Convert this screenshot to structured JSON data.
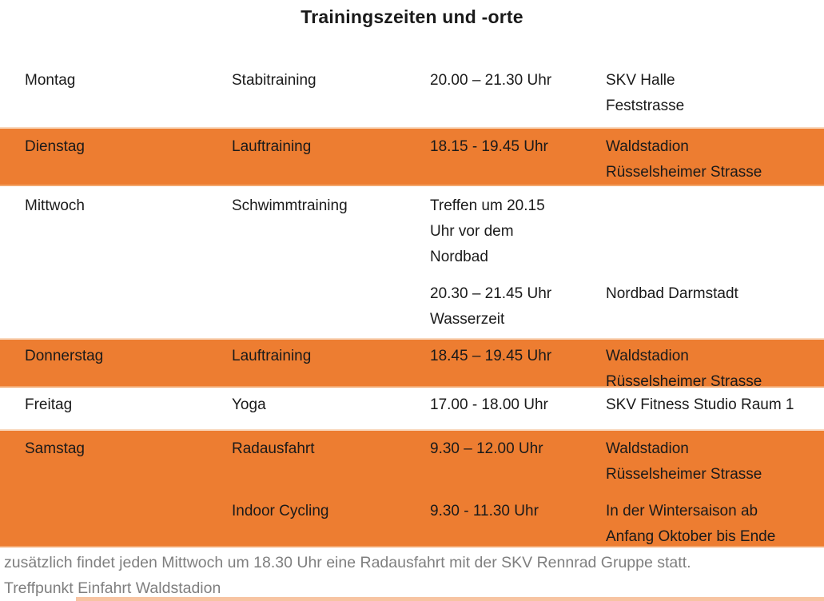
{
  "title": "Trainingszeiten und -orte",
  "colors": {
    "highlight_orange": "#ED7D31",
    "text": "#1a1a1a",
    "footer_gray": "#7f7f7f",
    "row_border_light": "#f9d9be"
  },
  "rows": [
    {
      "day": "Montag",
      "highlight": false,
      "entries": [
        {
          "activity": "Stabitraining",
          "time_lines": [
            "20.00 – 21.30 Uhr"
          ],
          "location_lines": [
            "SKV Halle",
            "Feststrasse"
          ]
        }
      ]
    },
    {
      "day": "Dienstag",
      "highlight": true,
      "entries": [
        {
          "activity": "Lauftraining",
          "time_lines": [
            "18.15 - 19.45 Uhr"
          ],
          "location_lines": [
            "Waldstadion",
            "Rüsselsheimer Strasse"
          ]
        }
      ]
    },
    {
      "day": "Mittwoch",
      "highlight": false,
      "entries": [
        {
          "activity": "Schwimmtraining",
          "time_lines": [
            "Treffen um 20.15",
            "Uhr vor dem",
            "Nordbad"
          ],
          "location_lines": []
        },
        {
          "activity": "",
          "time_lines": [
            "20.30 – 21.45 Uhr",
            "Wasserzeit"
          ],
          "location_lines": [
            "Nordbad Darmstadt"
          ]
        }
      ]
    },
    {
      "day": "Donnerstag",
      "highlight": true,
      "entries": [
        {
          "activity": "Lauftraining",
          "time_lines": [
            "18.45 – 19.45 Uhr"
          ],
          "location_lines": [
            "Waldstadion",
            "Rüsselsheimer Strasse"
          ]
        }
      ]
    },
    {
      "day": "Freitag",
      "highlight": false,
      "entries": [
        {
          "activity": "Yoga",
          "time_lines": [
            "17.00 - 18.00 Uhr"
          ],
          "location_lines": [
            "SKV Fitness Studio Raum 1"
          ]
        }
      ]
    },
    {
      "day": "Samstag",
      "highlight": true,
      "entries": [
        {
          "activity": "Radausfahrt",
          "time_lines": [
            "9.30 – 12.00 Uhr"
          ],
          "location_lines": [
            "Waldstadion",
            "Rüsselsheimer Strasse"
          ]
        },
        {
          "activity": "Indoor Cycling",
          "time_lines": [
            "9.30 - 11.30 Uhr"
          ],
          "location_lines": [
            "In der Wintersaison ab",
            "Anfang Oktober bis Ende"
          ]
        }
      ]
    }
  ],
  "footer": {
    "line1": "zusätzlich findet jeden Mittwoch um 18.30 Uhr eine Radausfahrt mit der SKV Rennrad Gruppe statt.",
    "line2": "Treffpunkt Einfahrt Waldstadion"
  }
}
